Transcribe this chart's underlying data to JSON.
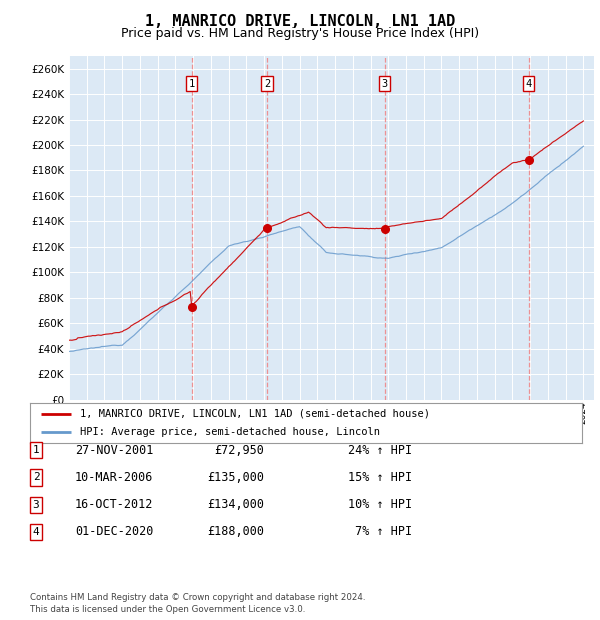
{
  "title": "1, MANRICO DRIVE, LINCOLN, LN1 1AD",
  "subtitle": "Price paid vs. HM Land Registry's House Price Index (HPI)",
  "title_fontsize": 11,
  "subtitle_fontsize": 9,
  "background_color": "#dce9f5",
  "red_color": "#cc0000",
  "blue_color": "#6699cc",
  "dashed_color": "#ee8888",
  "ylim": [
    0,
    270000
  ],
  "yticks": [
    0,
    20000,
    40000,
    60000,
    80000,
    100000,
    120000,
    140000,
    160000,
    180000,
    200000,
    220000,
    240000,
    260000
  ],
  "sale_year_floats": [
    2001.9167,
    2006.1667,
    2012.7917,
    2020.9167
  ],
  "sale_prices": [
    72950,
    135000,
    134000,
    188000
  ],
  "sale_labels": [
    "1",
    "2",
    "3",
    "4"
  ],
  "legend_label_red": "1, MANRICO DRIVE, LINCOLN, LN1 1AD (semi-detached house)",
  "legend_label_blue": "HPI: Average price, semi-detached house, Lincoln",
  "table_entries": [
    {
      "num": "1",
      "date": "27-NOV-2001",
      "price": "£72,950",
      "hpi": "24% ↑ HPI"
    },
    {
      "num": "2",
      "date": "10-MAR-2006",
      "price": "£135,000",
      "hpi": "15% ↑ HPI"
    },
    {
      "num": "3",
      "date": "16-OCT-2012",
      "price": "£134,000",
      "hpi": "10% ↑ HPI"
    },
    {
      "num": "4",
      "date": "01-DEC-2020",
      "price": "£188,000",
      "hpi": " 7% ↑ HPI"
    }
  ],
  "footer": "Contains HM Land Registry data © Crown copyright and database right 2024.\nThis data is licensed under the Open Government Licence v3.0."
}
